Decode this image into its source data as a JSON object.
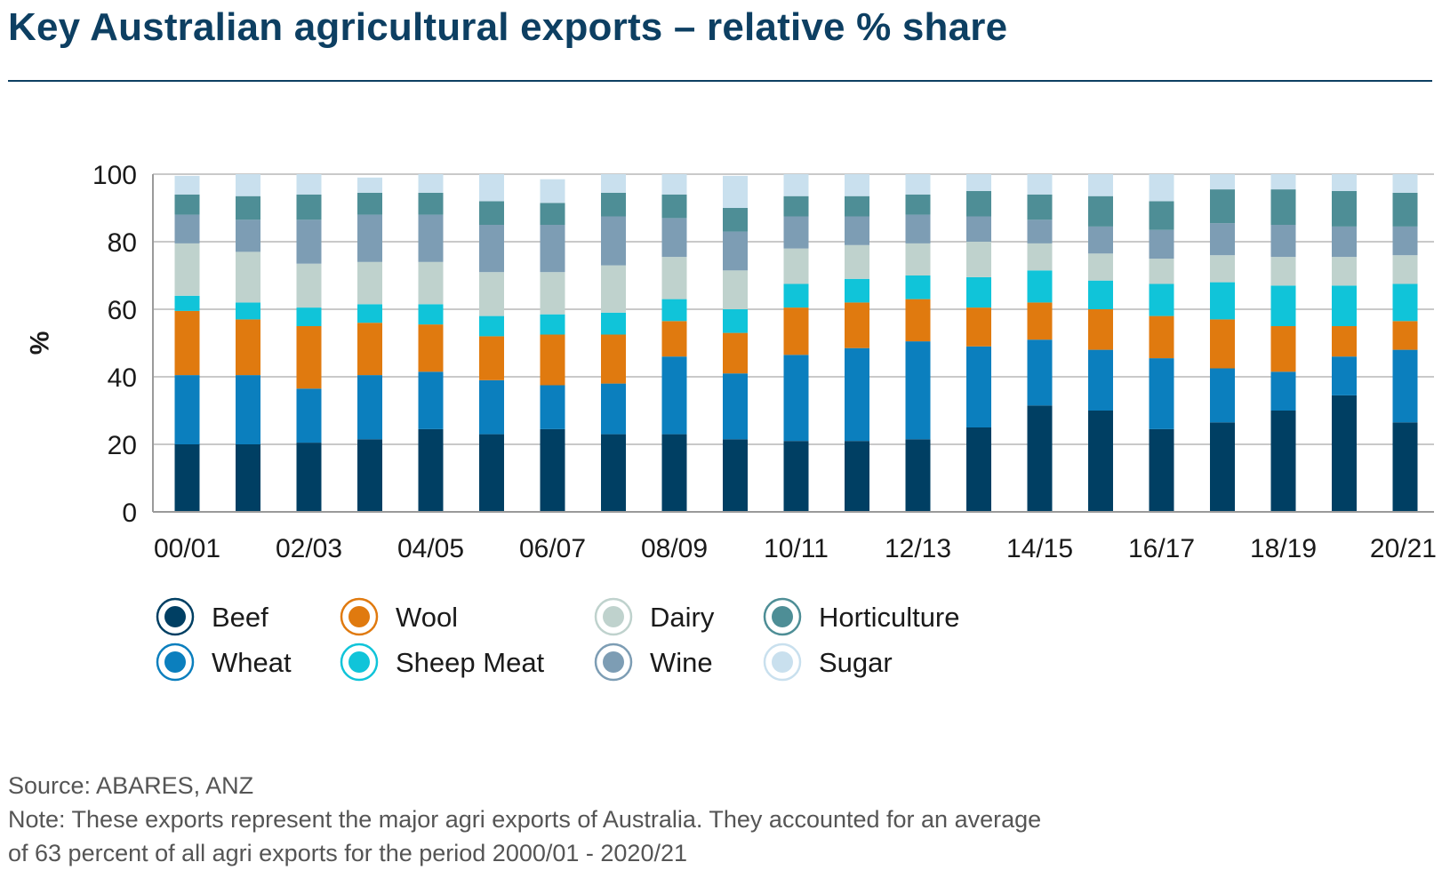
{
  "title": "Key Australian agricultural exports – relative % share",
  "source": "Source: ABARES, ANZ",
  "note_lines": [
    "Note: These exports represent the major agri exports of Australia. They accounted for an average",
    "of 63 percent of all agri exports for the period 2000/01 - 2020/21"
  ],
  "chart_data": {
    "type": "bar",
    "stacked": true,
    "ylabel": "%",
    "xlabel": "",
    "ylim": [
      0,
      100
    ],
    "yticks": [
      0,
      20,
      40,
      60,
      80,
      100
    ],
    "grid": true,
    "legend_position": "bottom-left",
    "categories": [
      "00/01",
      "01/02",
      "02/03",
      "03/04",
      "04/05",
      "05/06",
      "06/07",
      "07/08",
      "08/09",
      "09/10",
      "10/11",
      "11/12",
      "12/13",
      "13/14",
      "14/15",
      "15/16",
      "16/17",
      "17/18",
      "18/19",
      "19/20",
      "20/21"
    ],
    "x_tick_labels": [
      "00/01",
      "02/03",
      "04/05",
      "06/07",
      "08/09",
      "10/11",
      "12/13",
      "14/15",
      "16/17",
      "18/19",
      "20/21"
    ],
    "series": [
      {
        "name": "Beef",
        "color": "#003f63",
        "values": [
          20,
          20,
          20.5,
          21.5,
          24.5,
          23,
          24.5,
          23,
          23,
          21.5,
          21,
          21,
          21.5,
          25,
          31.5,
          30,
          24.5,
          26.5,
          30,
          34.5,
          26.5
        ]
      },
      {
        "name": "Wheat",
        "color": "#0b7fbe",
        "values": [
          20.5,
          20.5,
          16,
          19,
          17,
          16,
          13,
          15,
          23,
          19.5,
          25.5,
          27.5,
          29,
          24,
          19.5,
          18,
          21,
          16,
          11.5,
          11.5,
          21.5
        ]
      },
      {
        "name": "Wool",
        "color": "#e07a0f",
        "values": [
          19,
          16.5,
          18.5,
          15.5,
          14,
          13,
          15,
          14.5,
          10.5,
          12,
          14,
          13.5,
          12.5,
          11.5,
          11,
          12,
          12.5,
          14.5,
          13.5,
          9,
          8.5
        ]
      },
      {
        "name": "Sheep Meat",
        "color": "#10c4d9",
        "values": [
          4.5,
          5,
          5.5,
          5.5,
          6,
          6,
          6,
          6.5,
          6.5,
          7,
          7,
          7,
          7,
          9,
          9.5,
          8.5,
          9.5,
          11,
          12,
          12,
          11
        ]
      },
      {
        "name": "Dairy",
        "color": "#bfd2cd",
        "values": [
          15.5,
          15,
          13,
          12.5,
          12.5,
          13,
          12.5,
          14,
          12.5,
          11.5,
          10.5,
          10,
          9.5,
          10.5,
          8,
          8,
          7.5,
          8,
          8.5,
          8.5,
          8.5
        ]
      },
      {
        "name": "Wine",
        "color": "#7d9db4",
        "values": [
          8.5,
          9.5,
          13,
          14,
          14,
          14,
          14,
          14.5,
          11.5,
          11.5,
          9.5,
          8.5,
          8.5,
          7.5,
          7,
          8,
          8.5,
          9.5,
          9.5,
          9,
          8.5
        ]
      },
      {
        "name": "Horticulture",
        "color": "#4e8e96",
        "values": [
          6,
          7,
          7.5,
          6.5,
          6.5,
          7,
          6.5,
          7,
          7,
          7,
          6,
          6,
          6,
          7.5,
          7.5,
          9,
          8.5,
          10,
          10.5,
          10.5,
          10
        ]
      },
      {
        "name": "Sugar",
        "color": "#c9e0ee",
        "values": [
          5.5,
          6.5,
          6,
          4.5,
          5.5,
          8,
          7,
          5.5,
          6,
          9.5,
          6.5,
          6.5,
          6,
          5,
          6,
          6.5,
          8,
          4.5,
          4.5,
          5,
          5.5
        ]
      }
    ]
  }
}
